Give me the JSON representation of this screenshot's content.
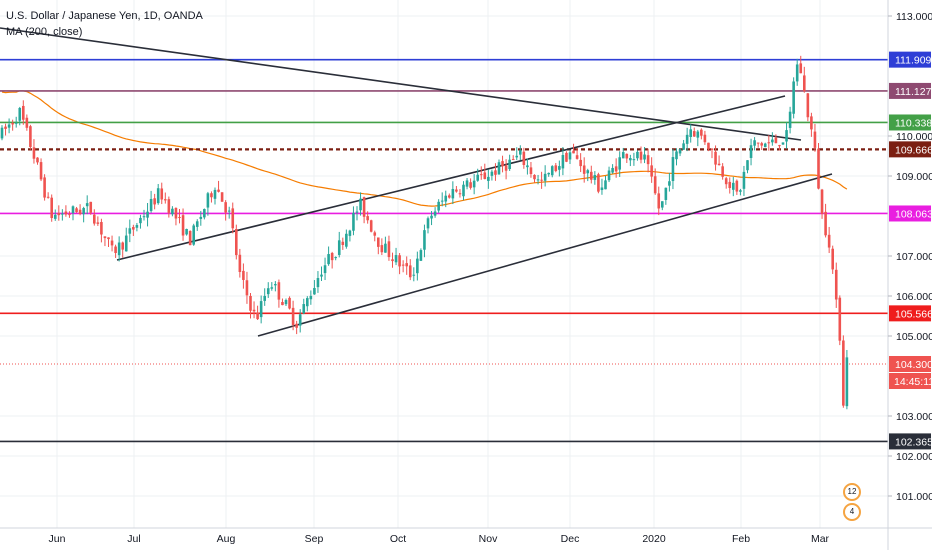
{
  "title": "U.S. Dollar / Japanese Yen, 1D, OANDA",
  "indicator": "MA (200, close)",
  "colors": {
    "up": "#26a69a",
    "down": "#ef5350",
    "ma": "#f57c00",
    "grid": "#eef0f3",
    "trend": "#2a2e39"
  },
  "chart_data": {
    "type": "candlestick",
    "x_ticks": [
      "Jun",
      "Jul",
      "Aug",
      "Sep",
      "Oct",
      "Nov",
      "Dec",
      "2020",
      "Feb",
      "Mar"
    ],
    "y_ticks": [
      "101.000",
      "102.000",
      "103.000",
      "105.000",
      "106.000",
      "107.000",
      "109.000",
      "110.000",
      "113.000"
    ],
    "ylim": [
      100.2,
      113.4
    ],
    "current_price": "104.300",
    "countdown": "14:45:11",
    "levels": [
      {
        "label": "111.909",
        "value": 111.909,
        "color": "#2e3ed6",
        "style": "solid"
      },
      {
        "label": "111.127",
        "value": 111.127,
        "color": "#8e4a71",
        "style": "solid"
      },
      {
        "label": "110.338",
        "value": 110.338,
        "color": "#43a047",
        "style": "solid"
      },
      {
        "label": "109.666",
        "value": 109.666,
        "color": "#7b1f12",
        "style": "dashed"
      },
      {
        "label": "108.063",
        "value": 108.063,
        "color": "#e91ee0",
        "style": "solid"
      },
      {
        "label": "105.566",
        "value": 105.566,
        "color": "#ef1d1d",
        "style": "solid"
      },
      {
        "label": "102.365",
        "value": 102.365,
        "color": "#2a2e39",
        "style": "solid"
      }
    ],
    "trendlines": [
      {
        "from": [
          "May 6",
          112.7
        ],
        "to": [
          "Feb 20",
          109.9
        ]
      },
      {
        "from": [
          "Jun 19",
          106.9
        ],
        "to": [
          "Feb 17",
          111.0
        ]
      },
      {
        "from": [
          "Aug 12",
          105.0
        ],
        "to": [
          "Mar 1",
          109.05
        ]
      }
    ],
    "events": [
      "12",
      "4"
    ]
  }
}
